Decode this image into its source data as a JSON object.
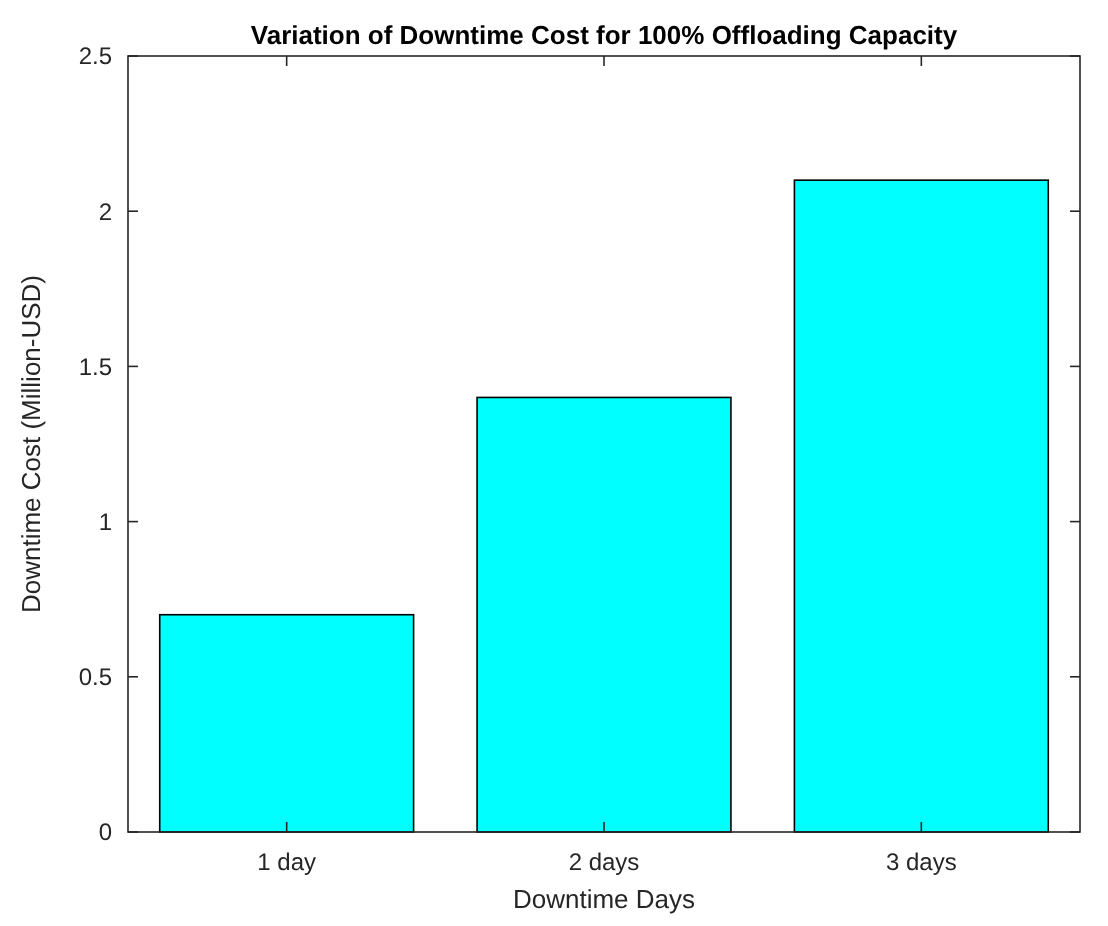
{
  "chart_data": {
    "type": "bar",
    "title": "Variation of Downtime Cost for 100% Offloading Capacity",
    "xlabel": "Downtime Days",
    "ylabel": "Downtime Cost (Million-USD)",
    "categories": [
      "1 day",
      "2 days",
      "3 days"
    ],
    "values": [
      0.7,
      1.4,
      2.1
    ],
    "color": "#00ffff",
    "ylim": [
      0,
      2.5
    ],
    "yticks": [
      0,
      0.5,
      1,
      1.5,
      2,
      2.5
    ],
    "grid": false
  }
}
